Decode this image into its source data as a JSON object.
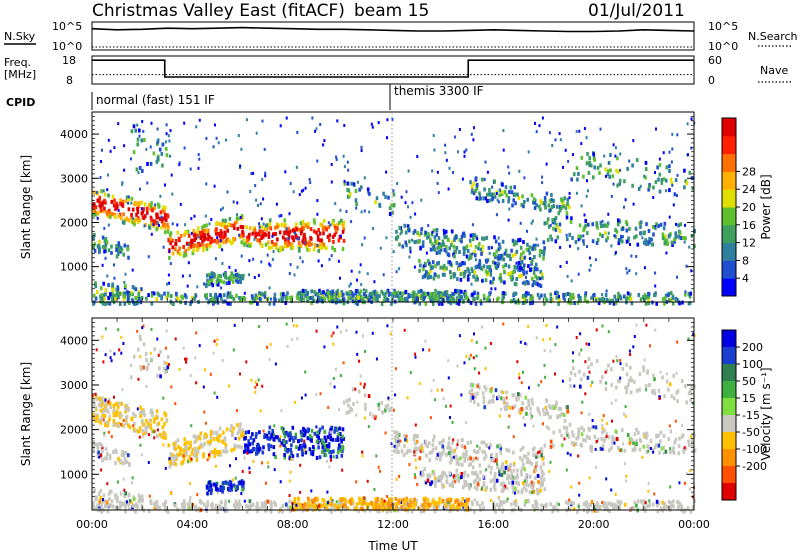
{
  "header": {
    "title": "Christmas Valley East (fitACF)",
    "beam": "beam 15",
    "date": "01/Jul/2011"
  },
  "labels": {
    "nsky": "N.Sky",
    "nsearch": "N.Search",
    "freq": "Freq.",
    "mhz": "[MHz]",
    "nave": "Nave",
    "cpid": "CPID",
    "scale_hi_left": "10^5",
    "scale_lo_left": "10^0",
    "scale_hi_right": "10^5",
    "scale_lo_right": "10^0"
  },
  "cpid_segments": [
    {
      "label": "normal (fast) 151 IF",
      "start_hour": 0
    },
    {
      "label": "themis 3300 IF",
      "start_hour": 12
    }
  ],
  "chart_data": [
    {
      "type": "line",
      "name": "noise",
      "ylim_label_left": [
        "10^0",
        "10^5"
      ],
      "ylim_label_right": [
        "10^0",
        "10^5"
      ],
      "series": [
        {
          "x": [
            0,
            1,
            2,
            3,
            4,
            5,
            6,
            7,
            8,
            9,
            10,
            11,
            12,
            13,
            14,
            15,
            16,
            17,
            18,
            19,
            20,
            21,
            22,
            23,
            24
          ],
          "values": [
            3.8,
            3.6,
            3.7,
            3.9,
            3.8,
            3.9,
            4.0,
            3.9,
            3.8,
            3.7,
            3.7,
            3.6,
            3.5,
            3.4,
            3.4,
            3.5,
            3.6,
            3.5,
            3.4,
            3.3,
            3.3,
            3.4,
            3.6,
            3.5,
            3.4
          ]
        }
      ]
    },
    {
      "type": "line",
      "name": "frequency-nave",
      "left_ticks": [
        "8",
        "18"
      ],
      "right_ticks": [
        "0",
        "60"
      ],
      "freq_steps": [
        {
          "from": 0,
          "to": 2.9,
          "mhz": 16.5
        },
        {
          "from": 2.9,
          "to": 15.0,
          "mhz": 10.5
        },
        {
          "from": 15.0,
          "to": 24,
          "mhz": 16.5
        }
      ],
      "nave_level": 20
    },
    {
      "type": "heatmap",
      "name": "power",
      "xlabel": "",
      "ylabel": "Slant Range [km]",
      "yticks": [
        "1000",
        "2000",
        "3000",
        "4000"
      ],
      "ylim": [
        200,
        4500
      ],
      "colorbar_label": "Power [dB]",
      "colorbar_ticks": [
        "4",
        "8",
        "12",
        "16",
        "20",
        "24",
        "28"
      ],
      "colorbar_colors": [
        "#0000ff",
        "#1f4fd0",
        "#2f7f9f",
        "#3f9f5f",
        "#5fc02f",
        "#dfdf00",
        "#ffb000",
        "#ff7000",
        "#ff2000",
        "#e00000"
      ]
    },
    {
      "type": "heatmap",
      "name": "velocity",
      "xlabel": "Time UT",
      "ylabel": "Slant Range [km]",
      "yticks": [
        "1000",
        "2000",
        "3000",
        "4000"
      ],
      "ylim": [
        200,
        4500
      ],
      "xticks": [
        "00:00",
        "04:00",
        "08:00",
        "12:00",
        "16:00",
        "20:00",
        "00:00"
      ],
      "colorbar_label": "Velocity [m s⁻¹]",
      "colorbar_ticks": [
        "200",
        "100",
        "50",
        "15",
        "-15",
        "-50",
        "-100",
        "-200"
      ],
      "colorbar_colors": [
        "#0000e0",
        "#1a3fd0",
        "#2f7f50",
        "#3faf3f",
        "#7fdf3f",
        "#c8c8c0",
        "#ffc000",
        "#ff9000",
        "#ff5000",
        "#e00000"
      ]
    }
  ]
}
